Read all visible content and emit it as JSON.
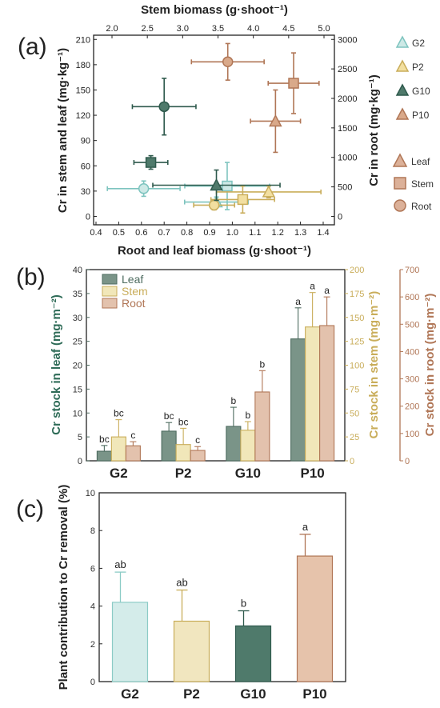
{
  "labels": {
    "a": "(a)",
    "b": "(b)",
    "c": "(c)"
  },
  "chart_data": [
    {
      "panel": "a",
      "type": "scatter",
      "x_top_label": "Stem biomass (g·shoot⁻¹)",
      "x_top_ticks": [
        "2.0",
        "2.5",
        "3.0",
        "3.5",
        "4.0",
        "4.5",
        "5.0"
      ],
      "x_top_lim": [
        2.0,
        5.0
      ],
      "x_bottom_label": "Root and leaf biomass (g·shoot⁻¹)",
      "x_bottom_ticks": [
        "0.4",
        "0.5",
        "0.6",
        "0.7",
        "0.8",
        "0.9",
        "1.0",
        "1.1",
        "1.2",
        "1.3",
        "1.4"
      ],
      "x_bottom_lim": [
        0.4,
        1.4
      ],
      "y_left_label": "Cr in stem and leaf (mg·kg⁻¹)",
      "y_left_ticks": [
        "0",
        "30",
        "60",
        "90",
        "120",
        "150",
        "180",
        "210"
      ],
      "y_left_lim": [
        -10,
        215
      ],
      "y_right_label": "Cr in root (mg·kg⁻¹)",
      "y_right_ticks": [
        "0",
        "500",
        "1000",
        "1500",
        "2000",
        "2500",
        "3000"
      ],
      "y_right_lim": [
        -142.86,
        3071.43
      ],
      "legend_treatments": [
        {
          "name": "G2",
          "color": "#cde9e6",
          "edge": "#7ec4bf"
        },
        {
          "name": "P2",
          "color": "#f2dfa0",
          "edge": "#c9ad5a"
        },
        {
          "name": "G10",
          "color": "#4f7a6b",
          "edge": "#2f5a4d"
        },
        {
          "name": "P10",
          "color": "#d9a98a",
          "edge": "#b07656"
        }
      ],
      "legend_tissues": [
        {
          "name": "Leaf",
          "shape": "triangle"
        },
        {
          "name": "Stem",
          "shape": "square"
        },
        {
          "name": "Root",
          "shape": "circle"
        }
      ],
      "points": [
        {
          "treatment": "G2",
          "tissue": "Leaf",
          "x": 0.93,
          "y": 17,
          "xerr": 0.14,
          "yerr": 6
        },
        {
          "treatment": "G2",
          "tissue": "Stem",
          "x": 3.63,
          "y": 36,
          "xerr": 0.6,
          "yerr": 28
        },
        {
          "treatment": "G2",
          "tissue": "Root",
          "x": 0.61,
          "y": 470,
          "xerr": 0.16,
          "yerr": 130
        },
        {
          "treatment": "P2",
          "tissue": "Leaf",
          "x": 1.16,
          "y": 29,
          "xerr": 0.23,
          "yerr": 7
        },
        {
          "treatment": "P2",
          "tissue": "Stem",
          "x": 3.85,
          "y": 20,
          "xerr": 0.45,
          "yerr": 16
        },
        {
          "treatment": "P2",
          "tissue": "Root",
          "x": 0.92,
          "y": 190,
          "xerr": 0.09,
          "yerr": 80
        },
        {
          "treatment": "G10",
          "tissue": "Leaf",
          "x": 0.93,
          "y": 37,
          "xerr": 0.28,
          "yerr": 18
        },
        {
          "treatment": "G10",
          "tissue": "Stem",
          "x": 2.55,
          "y": 64,
          "xerr": 0.24,
          "yerr": 8
        },
        {
          "treatment": "G10",
          "tissue": "Root",
          "x": 0.7,
          "y": 1860,
          "xerr": 0.14,
          "yerr": 480
        },
        {
          "treatment": "P10",
          "tissue": "Leaf",
          "x": 1.19,
          "y": 113,
          "xerr": 0.11,
          "yerr": 37
        },
        {
          "treatment": "P10",
          "tissue": "Stem",
          "x": 4.57,
          "y": 158,
          "xerr": 0.36,
          "yerr": 36
        },
        {
          "treatment": "P10",
          "tissue": "Root",
          "x": 0.98,
          "y": 2620,
          "xerr": 0.16,
          "yerr": 310
        }
      ]
    },
    {
      "panel": "b",
      "type": "bar",
      "categories": [
        "G2",
        "P2",
        "G10",
        "P10"
      ],
      "series": [
        {
          "name": "Leaf",
          "color": "#7a9488",
          "edge": "#4d6b5f",
          "axis": "left",
          "values": [
            2,
            6.2,
            7.2,
            25.5
          ],
          "errors": [
            1.2,
            1.8,
            4,
            6.5
          ],
          "letters": [
            "bc",
            "bc",
            "b",
            "a"
          ]
        },
        {
          "name": "Stem",
          "color": "#f1e7b9",
          "edge": "#c9ad5a",
          "axis": "middle",
          "values": [
            25,
            17,
            32,
            140
          ],
          "errors": [
            18,
            17,
            9,
            36
          ],
          "letters": [
            "bc",
            "bc",
            "b",
            "a"
          ]
        },
        {
          "name": "Root",
          "color": "#e3c2ad",
          "edge": "#b07656",
          "axis": "right",
          "values": [
            55,
            38,
            252,
            495
          ],
          "errors": [
            15,
            14,
            78,
            105
          ],
          "letters": [
            "c",
            "c",
            "b",
            "a"
          ]
        }
      ],
      "y_left_label": "Cr stock in leaf (mg·m⁻²)",
      "y_left_ticks": [
        "0",
        "5",
        "10",
        "15",
        "20",
        "25",
        "30",
        "35",
        "40"
      ],
      "y_left_lim": [
        0,
        40
      ],
      "y_middle_label": "Cr stock in stem (mg·m⁻²)",
      "y_middle_ticks": [
        "0",
        "25",
        "50",
        "75",
        "100",
        "125",
        "150",
        "175",
        "200"
      ],
      "y_middle_lim": [
        0,
        200
      ],
      "y_right_label": "Cr stock in root (mg·m⁻²)",
      "y_right_ticks": [
        "0",
        "100",
        "200",
        "300",
        "400",
        "500",
        "600",
        "700"
      ],
      "y_right_lim": [
        0,
        700
      ]
    },
    {
      "panel": "c",
      "type": "bar",
      "categories": [
        "G2",
        "P2",
        "G10",
        "P10"
      ],
      "values": [
        4.2,
        3.2,
        2.95,
        6.65
      ],
      "errors": [
        1.6,
        1.65,
        0.8,
        1.15
      ],
      "letters": [
        "ab",
        "ab",
        "b",
        "a"
      ],
      "colors": [
        "#d4ecea",
        "#f1e6bf",
        "#4f7a6b",
        "#e6c3ab"
      ],
      "edges": [
        "#8ccbc6",
        "#c9ad5a",
        "#2f5a4d",
        "#b07656"
      ],
      "ylabel": "Plant contribution to Cr removal (%)",
      "y_ticks": [
        "0",
        "2",
        "4",
        "6",
        "8",
        "10"
      ],
      "ylim": [
        0,
        10
      ]
    }
  ]
}
